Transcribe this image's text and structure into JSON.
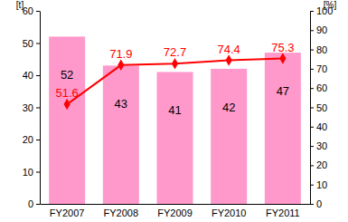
{
  "chart_data": {
    "type": "bar",
    "categories": [
      "FY2007",
      "FY2008",
      "FY2009",
      "FY2010",
      "FY2011"
    ],
    "ylabel": "[t]",
    "y2label": "[%]",
    "ylim": [
      0,
      60
    ],
    "yticks": [
      0,
      10,
      20,
      30,
      40,
      50,
      60
    ],
    "y2lim": [
      0,
      100
    ],
    "y2ticks": [
      0,
      10,
      20,
      30,
      40,
      50,
      60,
      70,
      80,
      90,
      100
    ],
    "grid": false,
    "data_labels": true,
    "series": [
      {
        "type": "bar",
        "color": "#ff99cc",
        "values": [
          52,
          43,
          41,
          42,
          47
        ]
      },
      {
        "type": "line",
        "axis": "y2",
        "color": "#ff0000",
        "marker": "diamond",
        "values": [
          51.6,
          71.9,
          72.7,
          74.4,
          75.3
        ]
      }
    ]
  }
}
